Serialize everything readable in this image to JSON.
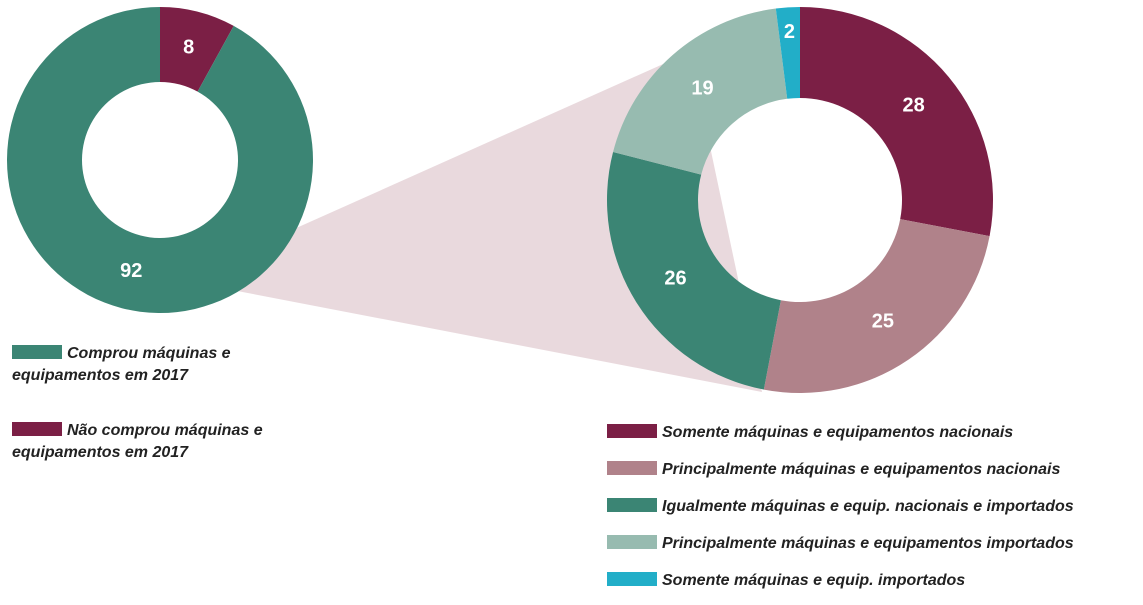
{
  "chart_data": [
    {
      "type": "donut",
      "categories": [
        "Não comprou máquinas e equipamentos em 2017",
        "Comprou máquinas e equipamentos em 2017"
      ],
      "values": [
        8,
        92
      ],
      "colors": [
        "#7b1f45",
        "#3b8574"
      ],
      "legend_order": [
        1,
        0
      ]
    },
    {
      "type": "donut",
      "categories": [
        "Somente máquinas e equipamentos nacionais",
        "Principalmente máquinas e equipamentos nacionais",
        "Igualmente máquinas e equip. nacionais e importados",
        "Principalmente máquinas e equipamentos importados",
        "Somente máquinas e equip. importados"
      ],
      "values": [
        28,
        25,
        26,
        19,
        2
      ],
      "colors": [
        "#7b1f45",
        "#b0828a",
        "#3b8574",
        "#97bbb0",
        "#22aec8"
      ],
      "legend_order": [
        0,
        1,
        2,
        3,
        4
      ]
    }
  ]
}
